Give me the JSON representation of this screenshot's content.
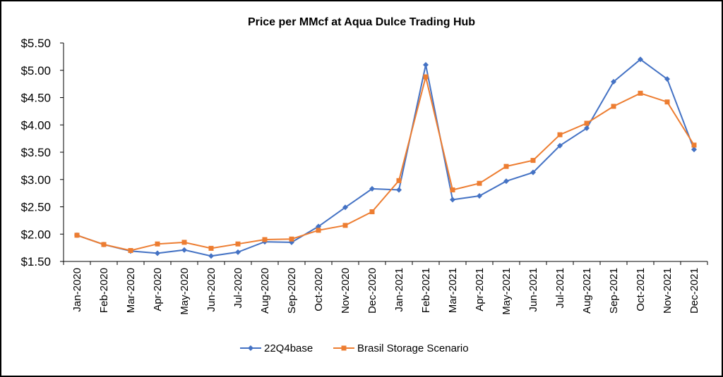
{
  "chart_data": {
    "type": "line",
    "title": "Price per MMcf at Aqua Dulce Trading Hub",
    "xlabel": "",
    "ylabel": "",
    "ylim": [
      1.5,
      5.5
    ],
    "y_ticks": [
      "$1.50",
      "$2.00",
      "$2.50",
      "$3.00",
      "$3.50",
      "$4.00",
      "$4.50",
      "$5.00",
      "$5.50"
    ],
    "grid": false,
    "legend_position": "bottom",
    "categories": [
      "Jan-2020",
      "Feb-2020",
      "Mar-2020",
      "Apr-2020",
      "May-2020",
      "Jun-2020",
      "Jul-2020",
      "Aug-2020",
      "Sep-2020",
      "Oct-2020",
      "Nov-2020",
      "Dec-2020",
      "Jan-2021",
      "Feb-2021",
      "Mar-2021",
      "Apr-2021",
      "May-2021",
      "Jun-2021",
      "Jul-2021",
      "Aug-2021",
      "Sep-2021",
      "Oct-2021",
      "Nov-2021",
      "Dec-2021"
    ],
    "series": [
      {
        "name": "22Q4base",
        "color": "#4472C4",
        "marker": "diamond",
        "values": [
          1.98,
          1.81,
          1.69,
          1.65,
          1.71,
          1.6,
          1.67,
          1.86,
          1.85,
          2.14,
          2.49,
          2.83,
          2.81,
          5.1,
          2.63,
          2.7,
          2.97,
          3.13,
          3.62,
          3.94,
          4.79,
          5.2,
          4.84,
          3.55
        ]
      },
      {
        "name": "Brasil Storage Scenario",
        "color": "#ED7D31",
        "marker": "square",
        "values": [
          1.98,
          1.81,
          1.7,
          1.82,
          1.85,
          1.74,
          1.82,
          1.9,
          1.91,
          2.07,
          2.16,
          2.41,
          2.98,
          4.88,
          2.81,
          2.93,
          3.24,
          3.35,
          3.82,
          4.03,
          4.34,
          4.58,
          4.42,
          3.63
        ]
      }
    ]
  }
}
